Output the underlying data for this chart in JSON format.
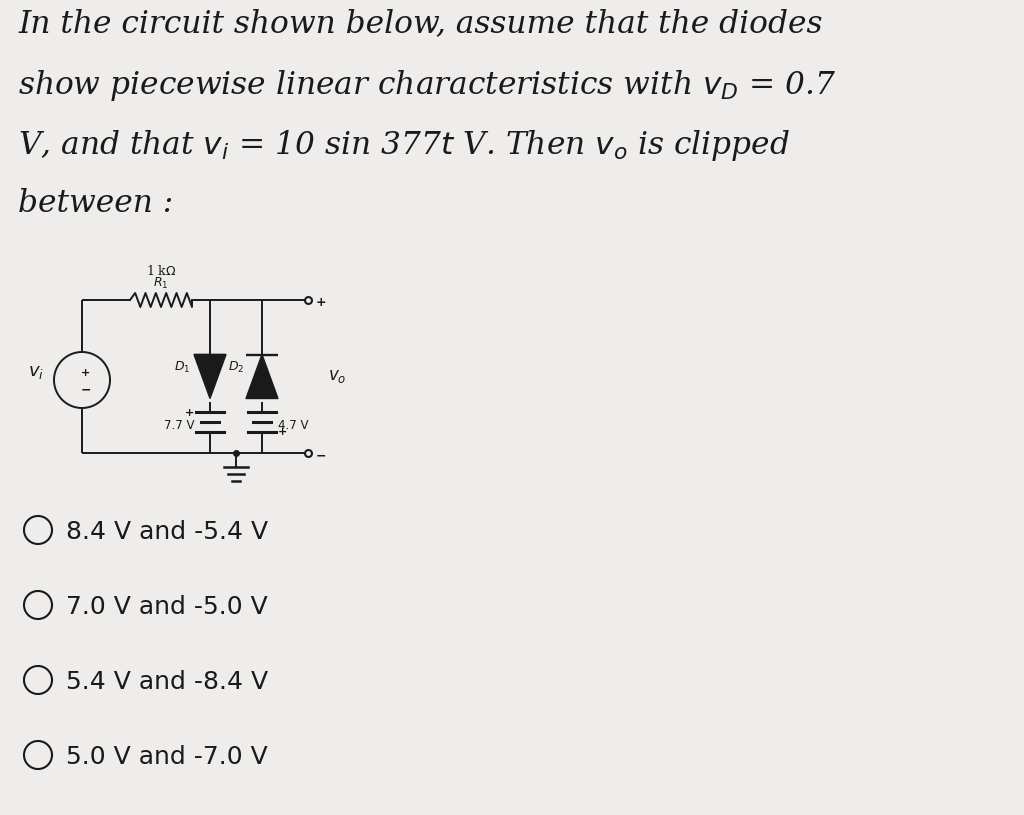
{
  "bg_color": "#efedeb",
  "font_color": "#1a1a1a",
  "options": [
    "8.4 V and -5.4 V",
    "7.0 V and -5.0 V",
    "5.4 V and -8.4 V",
    "5.0 V and -7.0 V"
  ]
}
